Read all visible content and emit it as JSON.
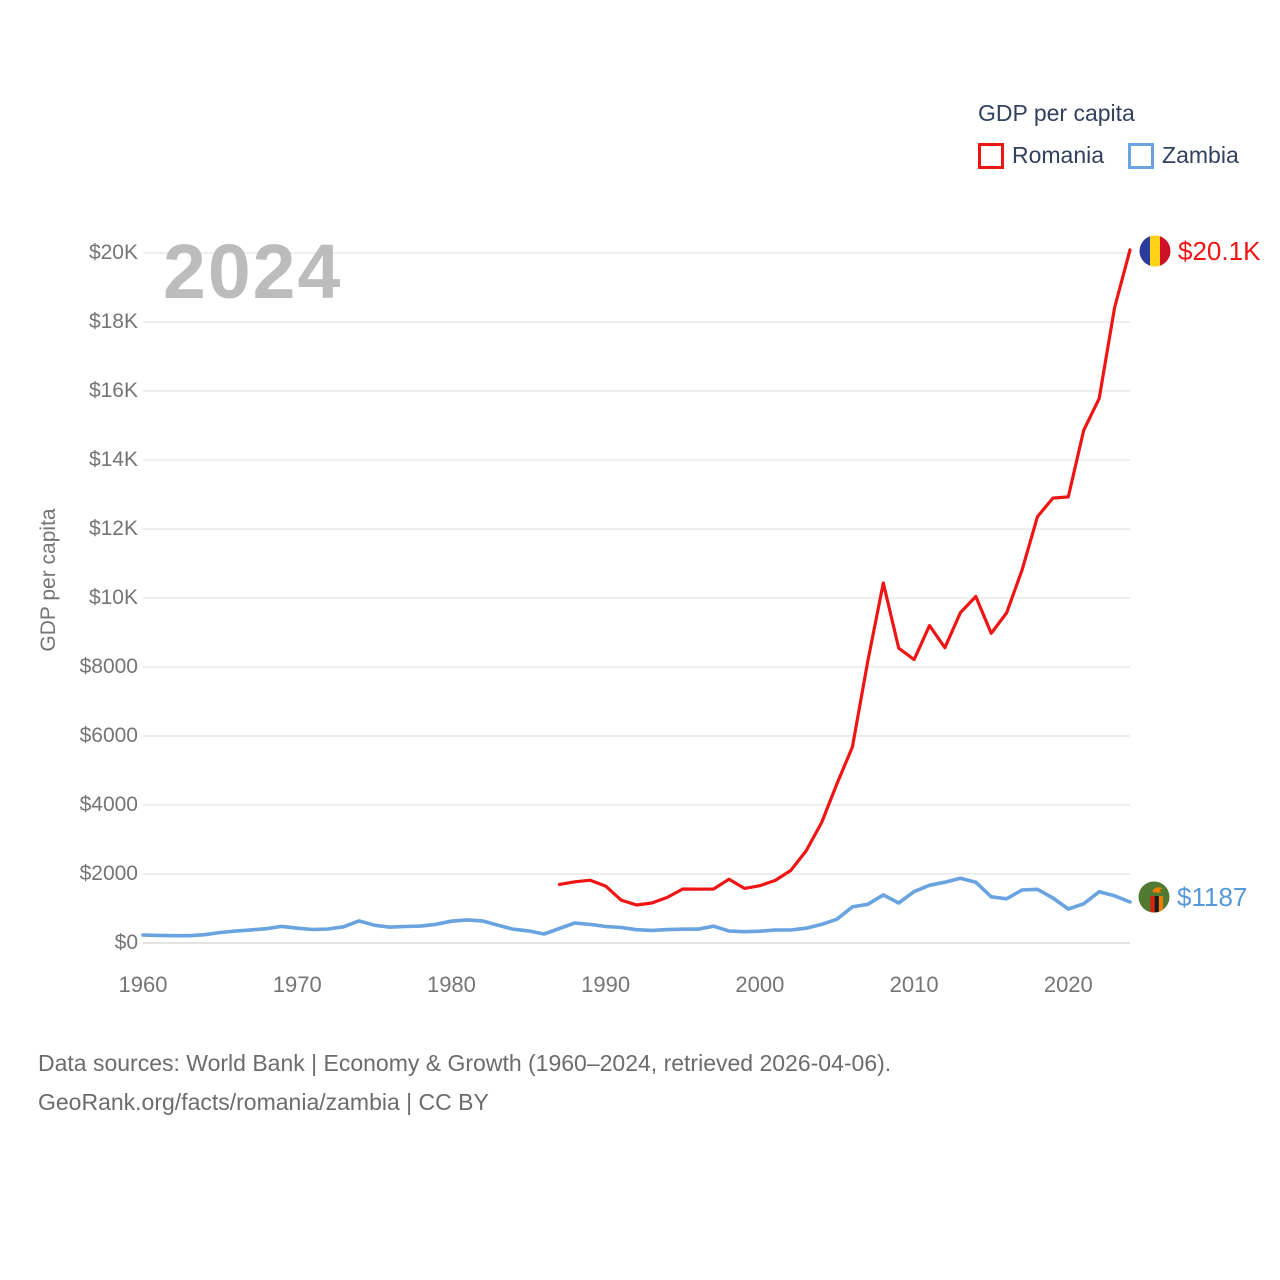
{
  "watermark": "2024",
  "legend": {
    "title": "GDP per capita",
    "items": [
      {
        "label": "Romania",
        "color": "#f01515"
      },
      {
        "label": "Zambia",
        "color": "#6aa4e0"
      }
    ]
  },
  "axes": {
    "y_title": "GDP per capita",
    "y_ticks": [
      {
        "label": "$0",
        "value": 0
      },
      {
        "label": "$2000",
        "value": 2000
      },
      {
        "label": "$4000",
        "value": 4000
      },
      {
        "label": "$6000",
        "value": 6000
      },
      {
        "label": "$8000",
        "value": 8000
      },
      {
        "label": "$10K",
        "value": 10000
      },
      {
        "label": "$12K",
        "value": 12000
      },
      {
        "label": "$14K",
        "value": 14000
      },
      {
        "label": "$16K",
        "value": 16000
      },
      {
        "label": "$18K",
        "value": 18000
      },
      {
        "label": "$20K",
        "value": 20000
      }
    ],
    "x_ticks": [
      {
        "label": "1960",
        "value": 1960
      },
      {
        "label": "1970",
        "value": 1970
      },
      {
        "label": "1980",
        "value": 1980
      },
      {
        "label": "1990",
        "value": 1990
      },
      {
        "label": "2000",
        "value": 2000
      },
      {
        "label": "2010",
        "value": 2010
      },
      {
        "label": "2020",
        "value": 2020
      }
    ]
  },
  "end_labels": {
    "romania": {
      "text": "$20.1K",
      "color": "#f01515",
      "flag_icon": "romania-flag-icon"
    },
    "zambia": {
      "text": "$1187",
      "color": "#5599da",
      "flag_icon": "zambia-flag-icon"
    }
  },
  "footer": {
    "line1": "Data sources: World Bank | Economy & Growth (1960–2024, retrieved 2026-04-06).",
    "line2": "GeoRank.org/facts/romania/zambia | CC BY"
  },
  "colors": {
    "romania_line": "#f01515",
    "zambia_line": "#6aa4e0",
    "gridline": "#e8e8e8",
    "zero_gridline": "#dcdcdc",
    "axis_text": "#757575",
    "legend_text": "#32415e",
    "watermark_text": "#bcbcbc",
    "footer_text": "#6c6c6c"
  },
  "chart_data": {
    "type": "line",
    "title": "GDP per capita",
    "xlabel": "",
    "ylabel": "GDP per capita",
    "x_range": [
      1960,
      2024
    ],
    "ylim": [
      0,
      20000
    ],
    "grid": true,
    "legend_position": "top-right",
    "current_year_marker": "2024",
    "series": [
      {
        "name": "Romania",
        "color": "#f01515",
        "start_year": 1987,
        "end_value_label": "$20.1K",
        "values": [
          1700,
          1774,
          1821,
          1650,
          1244,
          1101,
          1158,
          1323,
          1564,
          1563,
          1565,
          1850,
          1584,
          1660,
          1815,
          2100,
          2670,
          3490,
          4620,
          5680,
          8170,
          10435,
          8548,
          8214,
          9200,
          8558,
          9576,
          10043,
          8977,
          9567,
          10807,
          12360,
          12897,
          12929,
          14862,
          15786,
          18419,
          20089
        ]
      },
      {
        "name": "Zambia",
        "color": "#6aa4e0",
        "start_year": 1960,
        "end_value_label": "$1187",
        "values": [
          232,
          220,
          212,
          213,
          242,
          303,
          345,
          380,
          415,
          480,
          430,
          392,
          405,
          470,
          640,
          516,
          462,
          478,
          490,
          542,
          632,
          670,
          640,
          520,
          400,
          350,
          260,
          420,
          580,
          540,
          478,
          450,
          386,
          364,
          387,
          399,
          404,
          487,
          347,
          327,
          341,
          376,
          377,
          429,
          538,
          691,
          1047,
          1122,
          1394,
          1159,
          1489,
          1672,
          1763,
          1878,
          1763,
          1338,
          1280,
          1535,
          1556,
          1305,
          985,
          1137,
          1488,
          1369,
          1187
        ]
      }
    ]
  }
}
